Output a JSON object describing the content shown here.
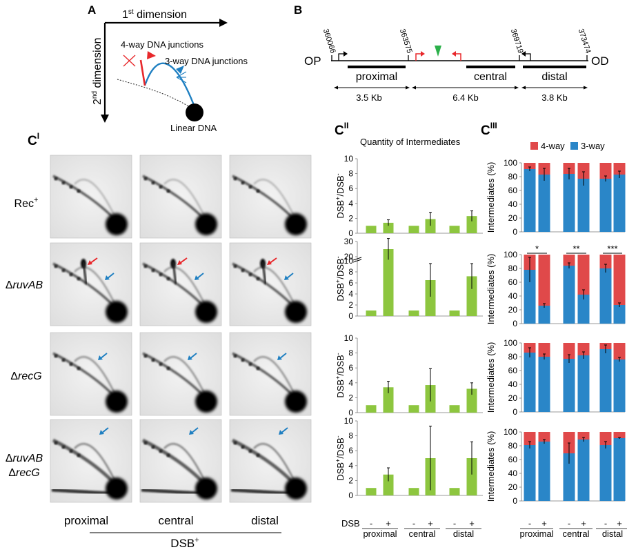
{
  "panelA": {
    "letter": "A",
    "dim1": "1",
    "dim1_sup": "st",
    "dim1_text": " dimension",
    "dim2": "2",
    "dim2_sup": "nd",
    "dim2_text": " dimension",
    "label_4way": "4-way DNA junctions",
    "label_3way": "3-way DNA junctions",
    "label_linear": "Linear DNA",
    "colors": {
      "fourway": "#e8282b",
      "threeway": "#1e7fc1"
    }
  },
  "panelB": {
    "letter": "B",
    "left_end": "OP",
    "right_end": "OD",
    "coords": [
      "360066",
      "363575",
      "369719",
      "373474"
    ],
    "regions": [
      "proximal",
      "central",
      "distal"
    ],
    "sizes": [
      "3.5 Kb",
      "6.4 Kb",
      "3.8 Kb"
    ],
    "colors": {
      "dsb_site": "#2bb04a",
      "promoter_red": "#e8282b"
    }
  },
  "panelC1": {
    "letter": "C",
    "sup": "I",
    "rows": [
      "Rec",
      "ΔruvAB",
      "ΔrecG",
      "ΔruvAB",
      "ΔrecG"
    ],
    "row0_sup": "+",
    "columns": [
      "proximal",
      "central",
      "distal"
    ],
    "footer": "DSB",
    "footer_sup": "+"
  },
  "panelC2": {
    "letter": "C",
    "sup": "II",
    "title": "Quantity of Intermediates",
    "ylabel": "DSB+/DSB-",
    "xlabel_dsb": "DSB",
    "ticks": [
      "-",
      "+"
    ],
    "groups": [
      "proximal",
      "central",
      "distal"
    ],
    "color": "#8dc63f"
  },
  "panelC3": {
    "letter": "C",
    "sup": "III",
    "legend": [
      {
        "name": "4-way",
        "color": "#e0494a"
      },
      {
        "name": "3-way",
        "color": "#2a86c8"
      }
    ],
    "ylabel": "Intermediates (%)",
    "ticks": [
      "-",
      "+"
    ],
    "groups": [
      "proximal",
      "central",
      "distal"
    ],
    "significance": [
      "*",
      "**",
      "***"
    ]
  },
  "chart_data": [
    {
      "type": "bar",
      "panel": "CII-row1-Rec+",
      "categories": [
        "proximal -",
        "proximal +",
        "central -",
        "central +",
        "distal -",
        "distal +"
      ],
      "values": [
        1,
        1.4,
        1,
        1.9,
        1,
        2.3
      ],
      "errors": [
        0,
        0.4,
        0,
        0.9,
        0,
        0.7
      ],
      "ylim": [
        0,
        10
      ],
      "yticks": [
        0,
        2,
        4,
        6,
        8,
        10
      ]
    },
    {
      "type": "bar",
      "panel": "CII-row2-ruvAB",
      "categories": [
        "proximal -",
        "proximal +",
        "central -",
        "central +",
        "distal -",
        "distal +"
      ],
      "values": [
        1,
        25,
        1,
        6.5,
        1,
        7.2
      ],
      "errors": [
        0,
        7,
        0,
        3,
        0,
        2.3
      ],
      "ylim": [
        0,
        30
      ],
      "yticks": [
        0,
        2,
        4,
        6,
        8,
        10,
        20,
        30
      ],
      "axis_break": [
        10,
        20
      ]
    },
    {
      "type": "bar",
      "panel": "CII-row3-recG",
      "categories": [
        "proximal -",
        "proximal +",
        "central -",
        "central +",
        "distal -",
        "distal +"
      ],
      "values": [
        1,
        3.4,
        1,
        3.7,
        1,
        3.2
      ],
      "errors": [
        0,
        0.8,
        0,
        2.2,
        0,
        0.8
      ],
      "ylim": [
        0,
        10
      ],
      "yticks": [
        0,
        2,
        4,
        6,
        8,
        10
      ]
    },
    {
      "type": "bar",
      "panel": "CII-row4-ruvAB-recG",
      "categories": [
        "proximal -",
        "proximal +",
        "central -",
        "central +",
        "distal -",
        "distal +"
      ],
      "values": [
        1,
        2.8,
        1,
        5,
        1,
        5
      ],
      "errors": [
        0,
        0.9,
        0,
        4.3,
        0,
        2.2
      ],
      "ylim": [
        0,
        10
      ],
      "yticks": [
        0,
        2,
        4,
        6,
        8,
        10
      ]
    },
    {
      "type": "bar",
      "stacked": true,
      "panel": "CIII-row1-Rec+",
      "categories": [
        "proximal -",
        "proximal +",
        "central -",
        "central +",
        "distal -",
        "distal +"
      ],
      "series": [
        {
          "name": "3-way",
          "values": [
            91,
            83,
            84,
            77,
            77,
            83
          ]
        },
        {
          "name": "4-way",
          "values": [
            9,
            17,
            16,
            23,
            23,
            17
          ]
        }
      ],
      "errors": [
        3,
        9,
        8,
        10,
        4,
        5
      ],
      "ylim": [
        0,
        100
      ],
      "yticks": [
        0,
        20,
        40,
        60,
        80,
        100
      ]
    },
    {
      "type": "bar",
      "stacked": true,
      "panel": "CIII-row2-ruvAB",
      "categories": [
        "proximal -",
        "proximal +",
        "central -",
        "central +",
        "distal -",
        "distal +"
      ],
      "series": [
        {
          "name": "3-way",
          "values": [
            78,
            26,
            84,
            42,
            80,
            27
          ]
        },
        {
          "name": "4-way",
          "values": [
            22,
            74,
            16,
            58,
            20,
            73
          ]
        }
      ],
      "errors": [
        18,
        3,
        4,
        7,
        6,
        3
      ],
      "ylim": [
        0,
        100
      ],
      "yticks": [
        0,
        20,
        40,
        60,
        80,
        100
      ]
    },
    {
      "type": "bar",
      "stacked": true,
      "panel": "CIII-row3-recG",
      "categories": [
        "proximal -",
        "proximal +",
        "central -",
        "central +",
        "distal -",
        "distal +"
      ],
      "series": [
        {
          "name": "3-way",
          "values": [
            86,
            80,
            77,
            82,
            91,
            76
          ]
        },
        {
          "name": "4-way",
          "values": [
            14,
            20,
            23,
            18,
            9,
            24
          ]
        }
      ],
      "errors": [
        7,
        4,
        6,
        5,
        6,
        3
      ],
      "ylim": [
        0,
        100
      ],
      "yticks": [
        0,
        20,
        40,
        60,
        80,
        100
      ]
    },
    {
      "type": "bar",
      "stacked": true,
      "panel": "CIII-row4-ruvAB-recG",
      "categories": [
        "proximal -",
        "proximal +",
        "central -",
        "central +",
        "distal -",
        "distal +"
      ],
      "series": [
        {
          "name": "3-way",
          "values": [
            81,
            86,
            69,
            89,
            81,
            91
          ]
        },
        {
          "name": "4-way",
          "values": [
            19,
            14,
            31,
            11,
            19,
            9
          ]
        }
      ],
      "errors": [
        5,
        3,
        15,
        3,
        5,
        1
      ],
      "ylim": [
        0,
        100
      ],
      "yticks": [
        0,
        20,
        40,
        60,
        80,
        100
      ]
    }
  ]
}
